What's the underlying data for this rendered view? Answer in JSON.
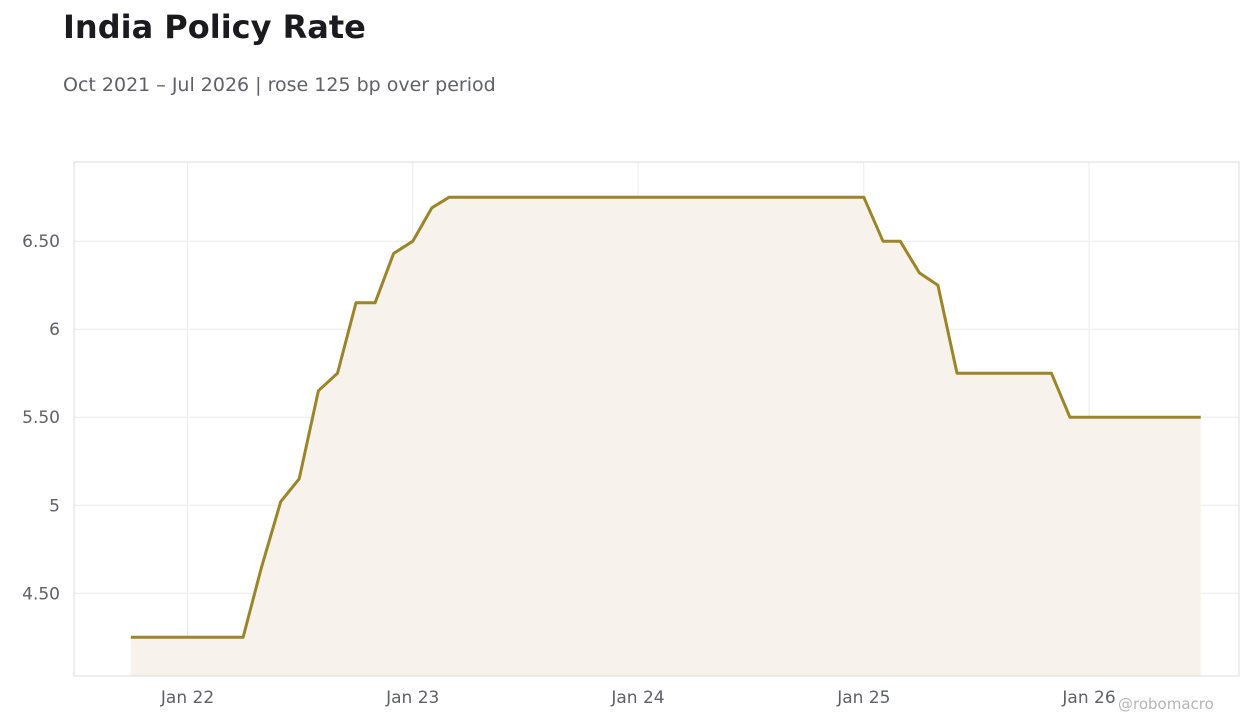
{
  "header": {
    "title": "India Policy Rate",
    "subtitle": "Oct 2021 – Jul 2026 | rose 125 bp over period"
  },
  "watermark": "@robomacro",
  "colors": {
    "line": "#9c8428",
    "fill": "#f7f3ec",
    "grid": "#ececec",
    "frame": "#dcdcdc"
  },
  "chart_data": {
    "type": "area",
    "title": "India Policy Rate",
    "subtitle": "Oct 2021 – Jul 2026 | rose 125 bp over period",
    "xlabel": "",
    "ylabel": "",
    "grid": true,
    "legend": "none",
    "xlim": [
      "2021-07-01",
      "2026-09-01"
    ],
    "ylim": [
      4.03,
      6.95
    ],
    "x_ticks": [
      {
        "date": "2022-01-01",
        "label": "Jan 22"
      },
      {
        "date": "2023-01-01",
        "label": "Jan 23"
      },
      {
        "date": "2024-01-01",
        "label": "Jan 24"
      },
      {
        "date": "2025-01-01",
        "label": "Jan 25"
      },
      {
        "date": "2026-01-01",
        "label": "Jan 26"
      }
    ],
    "y_ticks": [
      {
        "value": 4.5,
        "label": "4.50"
      },
      {
        "value": 5,
        "label": "5"
      },
      {
        "value": 5.5,
        "label": "5.50"
      },
      {
        "value": 6,
        "label": "6"
      },
      {
        "value": 6.5,
        "label": "6.50"
      }
    ],
    "series": [
      {
        "points": [
          {
            "date": "2021-10-01",
            "value": 4.25
          },
          {
            "date": "2022-04-01",
            "value": 4.25
          },
          {
            "date": "2022-05-01",
            "value": 4.65
          },
          {
            "date": "2022-06-01",
            "value": 5.02
          },
          {
            "date": "2022-07-01",
            "value": 5.15
          },
          {
            "date": "2022-08-01",
            "value": 5.65
          },
          {
            "date": "2022-09-01",
            "value": 5.75
          },
          {
            "date": "2022-10-01",
            "value": 6.15
          },
          {
            "date": "2022-11-01",
            "value": 6.15
          },
          {
            "date": "2022-12-01",
            "value": 6.43
          },
          {
            "date": "2023-01-01",
            "value": 6.5
          },
          {
            "date": "2023-02-01",
            "value": 6.69
          },
          {
            "date": "2023-03-01",
            "value": 6.75
          },
          {
            "date": "2025-01-01",
            "value": 6.75
          },
          {
            "date": "2025-02-01",
            "value": 6.5
          },
          {
            "date": "2025-03-01",
            "value": 6.5
          },
          {
            "date": "2025-04-01",
            "value": 6.32
          },
          {
            "date": "2025-05-01",
            "value": 6.25
          },
          {
            "date": "2025-06-01",
            "value": 5.75
          },
          {
            "date": "2025-11-01",
            "value": 5.75
          },
          {
            "date": "2025-12-01",
            "value": 5.5
          },
          {
            "date": "2026-07-01",
            "value": 5.5
          }
        ]
      }
    ]
  }
}
